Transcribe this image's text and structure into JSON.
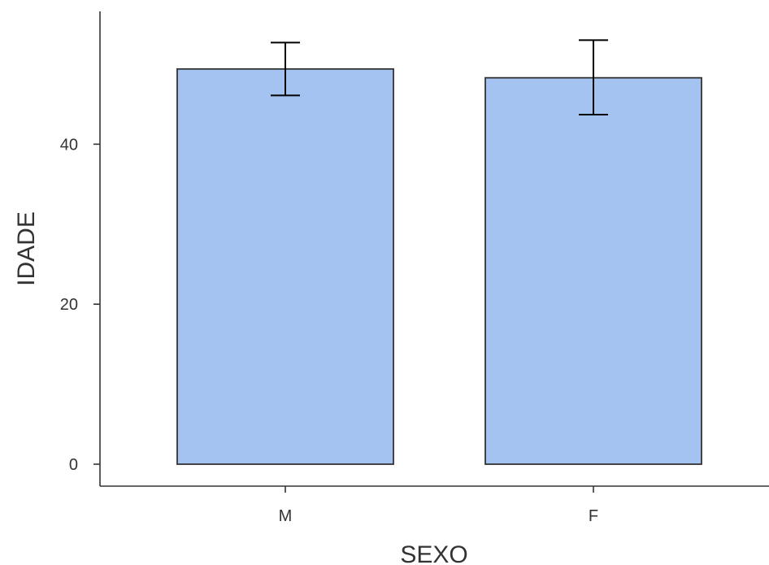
{
  "chart_data": {
    "type": "bar",
    "title": "",
    "xlabel": "SEXO",
    "ylabel": "IDADE",
    "categories": [
      "M",
      "F"
    ],
    "values": [
      49.4,
      48.3
    ],
    "error_low": [
      46.1,
      43.7
    ],
    "error_high": [
      52.7,
      53.0
    ],
    "ylim": [
      0,
      56.6
    ],
    "yticks": [
      0,
      20,
      40
    ],
    "grid": false,
    "bar_color": "#A4C3F1",
    "bar_edge_color": "#333333",
    "error_bar_color": "#000000"
  }
}
